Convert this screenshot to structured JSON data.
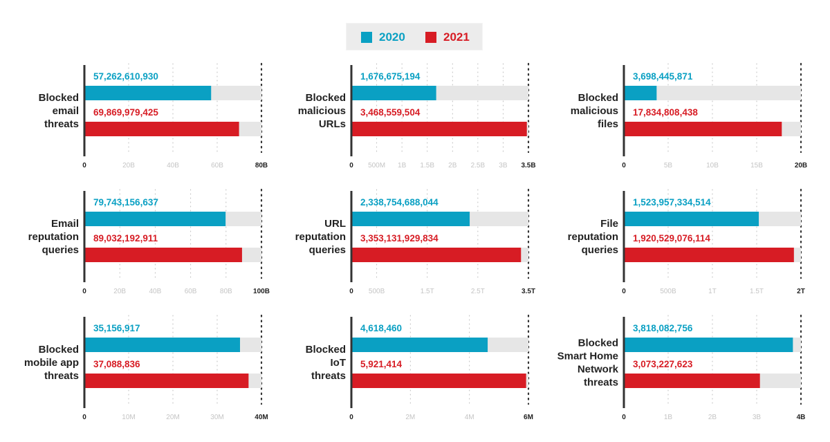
{
  "colors": {
    "2020": "#0aa0c3",
    "2021": "#d71c24",
    "track": "#e6e6e6",
    "axis": "#333333",
    "tick_minor": "#c4c4c4",
    "grid": "#bdbdbd"
  },
  "legend": [
    {
      "label": "2020",
      "color": "#0aa0c3"
    },
    {
      "label": "2021",
      "color": "#d71c24"
    }
  ],
  "chart_data": [
    {
      "type": "bar",
      "title": [
        "Blocked",
        "email",
        "threats"
      ],
      "series": [
        {
          "name": "2020",
          "values": [
            57262610930
          ],
          "label": "57,262,610,930"
        },
        {
          "name": "2021",
          "values": [
            69869979425
          ],
          "label": "69,869,979,425"
        }
      ],
      "ylim": [
        0,
        80000000000
      ],
      "ticks": [
        {
          "v": 0,
          "t": "0"
        },
        {
          "v": 20000000000,
          "t": "20B"
        },
        {
          "v": 40000000000,
          "t": "40B"
        },
        {
          "v": 60000000000,
          "t": "60B"
        },
        {
          "v": 80000000000,
          "t": "80B"
        }
      ]
    },
    {
      "type": "bar",
      "title": [
        "Blocked",
        "malicious",
        "URLs"
      ],
      "series": [
        {
          "name": "2020",
          "values": [
            1676675194
          ],
          "label": "1,676,675,194"
        },
        {
          "name": "2021",
          "values": [
            3468559504
          ],
          "label": "3,468,559,504"
        }
      ],
      "ylim": [
        0,
        3500000000
      ],
      "ticks": [
        {
          "v": 0,
          "t": "0"
        },
        {
          "v": 500000000,
          "t": "500M"
        },
        {
          "v": 1000000000,
          "t": "1B"
        },
        {
          "v": 1500000000,
          "t": "1.5B"
        },
        {
          "v": 2000000000,
          "t": "2B"
        },
        {
          "v": 2500000000,
          "t": "2.5B"
        },
        {
          "v": 3000000000,
          "t": "3B"
        },
        {
          "v": 3500000000,
          "t": "3.5B"
        }
      ]
    },
    {
      "type": "bar",
      "title": [
        "Blocked",
        "malicious",
        "files"
      ],
      "series": [
        {
          "name": "2020",
          "values": [
            3698445871
          ],
          "label": "3,698,445,871"
        },
        {
          "name": "2021",
          "values": [
            17834808438
          ],
          "label": "17,834,808,438"
        }
      ],
      "ylim": [
        0,
        20000000000
      ],
      "ticks": [
        {
          "v": 0,
          "t": "0"
        },
        {
          "v": 5000000000,
          "t": "5B"
        },
        {
          "v": 10000000000,
          "t": "10B"
        },
        {
          "v": 15000000000,
          "t": "15B"
        },
        {
          "v": 20000000000,
          "t": "20B"
        }
      ]
    },
    {
      "type": "bar",
      "title": [
        "Email",
        "reputation",
        "queries"
      ],
      "series": [
        {
          "name": "2020",
          "values": [
            79743156637
          ],
          "label": "79,743,156,637"
        },
        {
          "name": "2021",
          "values": [
            89032192911
          ],
          "label": "89,032,192,911"
        }
      ],
      "ylim": [
        0,
        100000000000
      ],
      "ticks": [
        {
          "v": 0,
          "t": "0"
        },
        {
          "v": 20000000000,
          "t": "20B"
        },
        {
          "v": 40000000000,
          "t": "40B"
        },
        {
          "v": 60000000000,
          "t": "60B"
        },
        {
          "v": 80000000000,
          "t": "80B"
        },
        {
          "v": 100000000000,
          "t": "100B"
        }
      ]
    },
    {
      "type": "bar",
      "title": [
        "URL",
        "reputation",
        "queries"
      ],
      "series": [
        {
          "name": "2020",
          "values": [
            2338754688044
          ],
          "label": "2,338,754,688,044"
        },
        {
          "name": "2021",
          "values": [
            3353131929834
          ],
          "label": "3,353,131,929,834"
        }
      ],
      "ylim": [
        0,
        3500000000000
      ],
      "ticks": [
        {
          "v": 0,
          "t": "0"
        },
        {
          "v": 500000000000,
          "t": "500B"
        },
        {
          "v": 1500000000000,
          "t": "1.5T"
        },
        {
          "v": 2500000000000,
          "t": "2.5T"
        },
        {
          "v": 3500000000000,
          "t": "3.5T"
        }
      ]
    },
    {
      "type": "bar",
      "title": [
        "File",
        "reputation",
        "queries"
      ],
      "series": [
        {
          "name": "2020",
          "values": [
            1523957334514
          ],
          "label": "1,523,957,334,514"
        },
        {
          "name": "2021",
          "values": [
            1920529076114
          ],
          "label": "1,920,529,076,114"
        }
      ],
      "ylim": [
        0,
        2000000000000
      ],
      "ticks": [
        {
          "v": 0,
          "t": "0"
        },
        {
          "v": 500000000000,
          "t": "500B"
        },
        {
          "v": 1000000000000,
          "t": "1T"
        },
        {
          "v": 1500000000000,
          "t": "1.5T"
        },
        {
          "v": 2000000000000,
          "t": "2T"
        }
      ]
    },
    {
      "type": "bar",
      "title": [
        "Blocked",
        "mobile app",
        "threats"
      ],
      "series": [
        {
          "name": "2020",
          "values": [
            35156917
          ],
          "label": "35,156,917"
        },
        {
          "name": "2021",
          "values": [
            37088836
          ],
          "label": "37,088,836"
        }
      ],
      "ylim": [
        0,
        40000000
      ],
      "ticks": [
        {
          "v": 0,
          "t": "0"
        },
        {
          "v": 10000000,
          "t": "10M"
        },
        {
          "v": 20000000,
          "t": "20M"
        },
        {
          "v": 30000000,
          "t": "30M"
        },
        {
          "v": 40000000,
          "t": "40M"
        }
      ]
    },
    {
      "type": "bar",
      "title": [
        "Blocked",
        "IoT",
        "threats"
      ],
      "series": [
        {
          "name": "2020",
          "values": [
            4618460
          ],
          "label": "4,618,460"
        },
        {
          "name": "2021",
          "values": [
            5921414
          ],
          "label": "5,921,414"
        }
      ],
      "ylim": [
        0,
        6000000
      ],
      "ticks": [
        {
          "v": 0,
          "t": "0"
        },
        {
          "v": 2000000,
          "t": "2M"
        },
        {
          "v": 4000000,
          "t": "4M"
        },
        {
          "v": 6000000,
          "t": "6M"
        }
      ]
    },
    {
      "type": "bar",
      "title": [
        "Blocked",
        "Smart Home",
        "Network",
        "threats"
      ],
      "series": [
        {
          "name": "2020",
          "values": [
            3818082756
          ],
          "label": "3,818,082,756"
        },
        {
          "name": "2021",
          "values": [
            3073227623
          ],
          "label": "3,073,227,623"
        }
      ],
      "ylim": [
        0,
        4000000000
      ],
      "ticks": [
        {
          "v": 0,
          "t": "0"
        },
        {
          "v": 1000000000,
          "t": "1B"
        },
        {
          "v": 2000000000,
          "t": "2B"
        },
        {
          "v": 3000000000,
          "t": "3B"
        },
        {
          "v": 4000000000,
          "t": "4B"
        }
      ]
    }
  ]
}
